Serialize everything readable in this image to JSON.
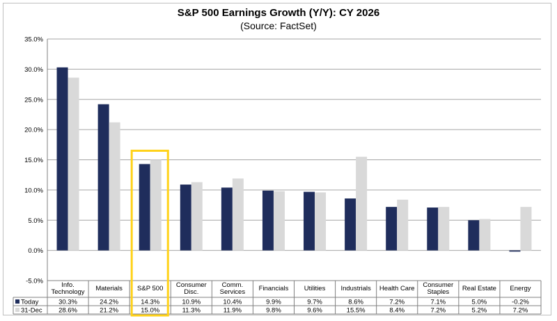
{
  "header": {
    "title": "S&P 500 Earnings Growth (Y/Y): CY 2026",
    "subtitle": "(Source: FactSet)"
  },
  "chart_data": {
    "type": "bar",
    "title": "S&P 500 Earnings Growth (Y/Y): CY 2026",
    "subtitle": "(Source: FactSet)",
    "categories": [
      [
        "Info.",
        "Technology"
      ],
      [
        "Materials"
      ],
      [
        "S&P 500"
      ],
      [
        "Consumer",
        "Disc."
      ],
      [
        "Comm.",
        "Services"
      ],
      [
        "Financials"
      ],
      [
        "Utilities"
      ],
      [
        "Industrials"
      ],
      [
        "Health Care"
      ],
      [
        "Consumer",
        "Staples"
      ],
      [
        "Real Estate"
      ],
      [
        "Energy"
      ]
    ],
    "series": [
      {
        "name": "Today",
        "color": "#1f2d5c",
        "values": [
          30.3,
          24.2,
          14.3,
          10.9,
          10.4,
          9.9,
          9.7,
          8.6,
          7.2,
          7.1,
          5.0,
          -0.2
        ],
        "labels": [
          "30.3%",
          "24.2%",
          "14.3%",
          "10.9%",
          "10.4%",
          "9.9%",
          "9.7%",
          "8.6%",
          "7.2%",
          "7.1%",
          "5.0%",
          "-0.2%"
        ]
      },
      {
        "name": "31-Dec",
        "color": "#d9d9d9",
        "values": [
          28.6,
          21.2,
          15.0,
          11.3,
          11.9,
          9.8,
          9.6,
          15.5,
          8.4,
          7.2,
          5.2,
          7.2
        ],
        "labels": [
          "28.6%",
          "21.2%",
          "15.0%",
          "11.3%",
          "11.9%",
          "9.8%",
          "9.6%",
          "15.5%",
          "8.4%",
          "7.2%",
          "5.2%",
          "7.2%"
        ]
      }
    ],
    "y_ticks": [
      -5,
      0,
      5,
      10,
      15,
      20,
      25,
      30,
      35
    ],
    "y_tick_labels": [
      "-5.0%",
      "0.0%",
      "5.0%",
      "10.0%",
      "15.0%",
      "20.0%",
      "25.0%",
      "30.0%",
      "35.0%"
    ],
    "ylim": [
      -5,
      35
    ],
    "grid": true,
    "legend": "data-table-left",
    "highlight": {
      "category": "S&P 500",
      "color": "#ffd21a"
    }
  }
}
